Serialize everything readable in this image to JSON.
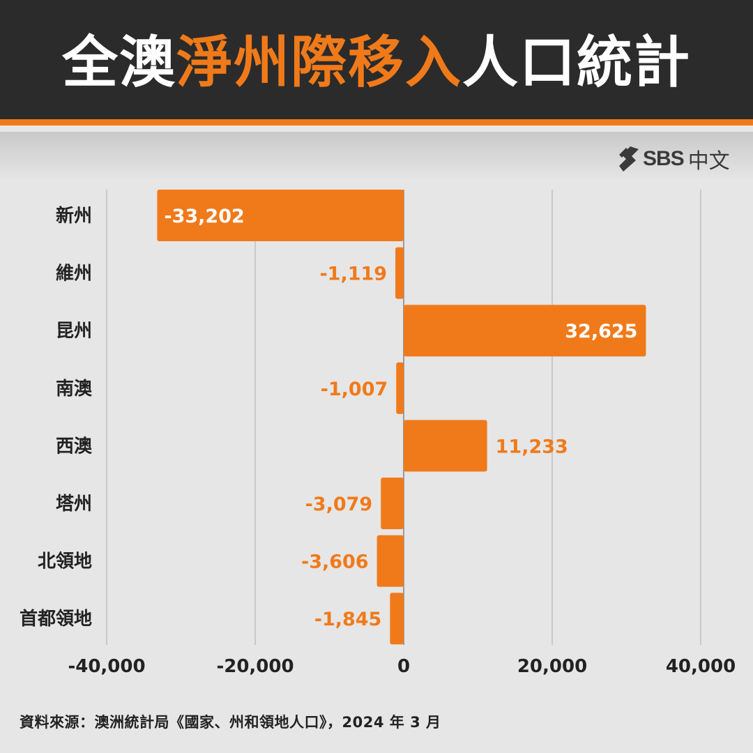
{
  "header": {
    "title_prefix": "全澳",
    "title_highlight": "淨州際移入",
    "title_suffix": "人口統計"
  },
  "logo": {
    "brand": "SBS",
    "sub": "中文",
    "icon": "sbs-logo-icon"
  },
  "colors": {
    "accent": "#f07a1a",
    "header_bg": "#2b2b2b",
    "background": "#e6e6e6",
    "grid": "#bfbfbf",
    "axis_zero": "#9a9a9a",
    "text_dark": "#222222"
  },
  "chart_data": {
    "type": "bar",
    "orientation": "horizontal",
    "categories": [
      "新州",
      "維州",
      "昆州",
      "南澳",
      "西澳",
      "塔州",
      "北領地",
      "首都領地"
    ],
    "values": [
      -33202,
      -1119,
      32625,
      -1007,
      11233,
      -3079,
      -3606,
      -1845
    ],
    "value_labels": [
      "-33,202",
      "-1,119",
      "32,625",
      "-1,007",
      "11,233",
      "-3,079",
      "-3,606",
      "-1,845"
    ],
    "xlim": [
      -40000,
      40000
    ],
    "xticks": [
      -40000,
      -20000,
      0,
      20000,
      40000
    ],
    "xtick_labels": [
      "-40,000",
      "-20,000",
      "0",
      "20,000",
      "40,000"
    ],
    "grid": true,
    "legend": "none"
  },
  "footer": {
    "source": "資料來源：澳洲統計局《國家、州和領地人口》，2024 年 3 月"
  }
}
